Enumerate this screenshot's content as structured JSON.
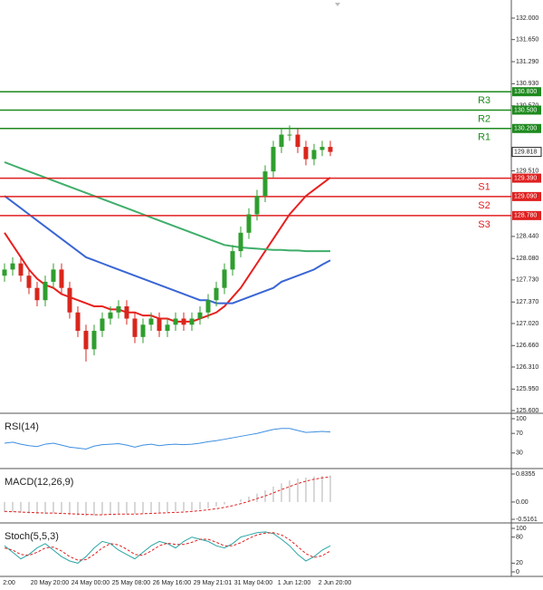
{
  "chart_data": {
    "type": "candlestick",
    "x_labels": [
      "2:00",
      "20 May 20:00",
      "24 May 00:00",
      "25 May 08:00",
      "26 May 16:00",
      "29 May 21:01",
      "31 May 04:00",
      "1 Jun 12:00",
      "2 Jun 20:00"
    ],
    "up_color": "#2e9e2e",
    "down_color": "#d9261c",
    "candles": {
      "open": [
        127.8,
        127.9,
        128.0,
        127.8,
        127.6,
        127.4,
        127.7,
        127.9,
        127.6,
        127.2,
        126.9,
        126.6,
        126.9,
        127.1,
        127.2,
        127.3,
        127.1,
        126.8,
        127.0,
        127.1,
        126.9,
        127.0,
        127.1,
        127.0,
        127.1,
        127.2,
        127.4,
        127.6,
        127.9,
        128.2,
        128.5,
        128.8,
        129.1,
        129.5,
        129.9,
        130.1,
        130.1,
        129.9,
        129.7,
        129.85,
        129.9
      ],
      "high": [
        128.0,
        128.1,
        128.1,
        127.9,
        127.7,
        127.8,
        128.0,
        128.0,
        127.7,
        127.3,
        127.0,
        127.0,
        127.2,
        127.3,
        127.4,
        127.4,
        127.2,
        127.1,
        127.2,
        127.2,
        127.1,
        127.2,
        127.2,
        127.2,
        127.3,
        127.5,
        127.7,
        128.0,
        128.3,
        128.6,
        128.9,
        129.2,
        129.6,
        130.0,
        130.2,
        130.25,
        130.2,
        130.0,
        129.95,
        130.0,
        130.0
      ],
      "low": [
        127.7,
        127.8,
        127.7,
        127.5,
        127.3,
        127.3,
        127.6,
        127.5,
        127.1,
        126.8,
        126.4,
        126.5,
        126.8,
        127.0,
        127.1,
        127.0,
        126.7,
        126.7,
        126.9,
        126.8,
        126.8,
        126.9,
        126.9,
        126.9,
        127.0,
        127.1,
        127.3,
        127.5,
        127.8,
        128.1,
        128.4,
        128.7,
        129.0,
        129.4,
        129.8,
        130.0,
        129.8,
        129.6,
        129.6,
        129.75,
        129.75
      ],
      "close": [
        127.9,
        128.0,
        127.8,
        127.6,
        127.4,
        127.7,
        127.9,
        127.6,
        127.2,
        126.9,
        126.6,
        126.9,
        127.1,
        127.2,
        127.3,
        127.1,
        126.8,
        127.0,
        127.1,
        126.9,
        127.0,
        127.1,
        127.0,
        127.1,
        127.2,
        127.4,
        127.6,
        127.9,
        128.2,
        128.5,
        128.8,
        129.1,
        129.5,
        129.9,
        130.1,
        130.1,
        129.9,
        129.7,
        129.85,
        129.9,
        129.818
      ]
    },
    "ma": [
      {
        "color": "#e8201e",
        "values": [
          128.5,
          128.3,
          128.1,
          127.9,
          127.75,
          127.65,
          127.6,
          127.5,
          127.45,
          127.4,
          127.35,
          127.3,
          127.3,
          127.25,
          127.25,
          127.2,
          127.2,
          127.15,
          127.15,
          127.1,
          127.1,
          127.05,
          127.05,
          127.05,
          127.1,
          127.15,
          127.2,
          127.3,
          127.45,
          127.6,
          127.8,
          128.0,
          128.2,
          128.4,
          128.6,
          128.8,
          128.95,
          129.1,
          129.2,
          129.3,
          129.4
        ]
      },
      {
        "color": "#3a66d4",
        "values": [
          129.1,
          129.0,
          128.9,
          128.8,
          128.7,
          128.6,
          128.5,
          128.4,
          128.3,
          128.2,
          128.1,
          128.05,
          128.0,
          127.95,
          127.9,
          127.85,
          127.8,
          127.75,
          127.7,
          127.65,
          127.6,
          127.55,
          127.5,
          127.45,
          127.4,
          127.4,
          127.35,
          127.35,
          127.35,
          127.4,
          127.45,
          127.5,
          127.55,
          127.6,
          127.7,
          127.75,
          127.8,
          127.85,
          127.9,
          127.98,
          128.05
        ]
      },
      {
        "color": "#3fae6a",
        "values": [
          129.65,
          129.6,
          129.55,
          129.5,
          129.45,
          129.4,
          129.35,
          129.3,
          129.25,
          129.2,
          129.15,
          129.1,
          129.05,
          129.0,
          128.95,
          128.9,
          128.85,
          128.8,
          128.75,
          128.7,
          128.65,
          128.6,
          128.55,
          128.5,
          128.45,
          128.4,
          128.35,
          128.3,
          128.28,
          128.26,
          128.25,
          128.24,
          128.23,
          128.22,
          128.22,
          128.21,
          128.21,
          128.2,
          128.2,
          128.2,
          128.2
        ]
      }
    ],
    "ylim": [
      125.6,
      132.0
    ],
    "yticks": [
      {
        "value": 132.0,
        "label": "132.000"
      },
      {
        "value": 131.65,
        "label": "131.650"
      },
      {
        "value": 131.29,
        "label": "131.290"
      },
      {
        "value": 130.93,
        "label": "130.930"
      },
      {
        "value": 130.57,
        "label": "130.570"
      },
      {
        "value": 129.51,
        "label": "129.510"
      },
      {
        "value": 128.44,
        "label": "128.440"
      },
      {
        "value": 128.08,
        "label": "128.080"
      },
      {
        "value": 127.73,
        "label": "127.730"
      },
      {
        "value": 127.37,
        "label": "127.370"
      },
      {
        "value": 127.02,
        "label": "127.020"
      },
      {
        "value": 126.66,
        "label": "126.660"
      },
      {
        "value": 126.31,
        "label": "126.310"
      },
      {
        "value": 125.95,
        "label": "125.950"
      },
      {
        "value": 125.6,
        "label": "125.600"
      }
    ],
    "levels": [
      {
        "name": "R3",
        "color": "#1e8a1e",
        "value": {
          "value": 130.8,
          "label": "130.800"
        }
      },
      {
        "name": "R2",
        "color": "#1e8a1e",
        "value": {
          "value": 130.5,
          "label": "130.500"
        }
      },
      {
        "name": "R1",
        "color": "#1e8a1e",
        "value": {
          "value": 130.2,
          "label": "130.200"
        }
      },
      {
        "name": "S1",
        "color": "#e02020",
        "value": {
          "value": 129.39,
          "label": "129.390"
        }
      },
      {
        "name": "S2",
        "color": "#e02020",
        "value": {
          "value": 129.09,
          "label": "129.090"
        }
      },
      {
        "name": "S3",
        "color": "#e02020",
        "value": {
          "value": 128.78,
          "label": "128.780"
        }
      }
    ],
    "last_price": {
      "value": 129.818,
      "label": "129.818"
    },
    "indicators": [
      {
        "type": "rsi",
        "title": "RSI(14)",
        "ylim": [
          0,
          100
        ],
        "yticks": [
          100,
          70,
          30
        ],
        "series": [
          {
            "color": "#3d8fe0",
            "values": [
              50,
              52,
              48,
              45,
              43,
              48,
              50,
              46,
              42,
              40,
              38,
              44,
              47,
              48,
              49,
              46,
              42,
              46,
              48,
              45,
              47,
              48,
              47,
              48,
              50,
              53,
              55,
              58,
              61,
              64,
              67,
              70,
              74,
              78,
              80,
              80,
              76,
              72,
              73,
              74,
              73
            ]
          }
        ]
      },
      {
        "type": "macd",
        "title": "MACD(12,26,9)",
        "ylim": [
          -0.5161,
          0.8355
        ],
        "yticks": [
          0.8355,
          {
            "value": 0,
            "label": "0.00"
          },
          -0.5161
        ],
        "series": [
          {
            "color": "#b0b0b0",
            "values": [
              -0.3,
              -0.3,
              -0.32,
              -0.34,
              -0.36,
              -0.35,
              -0.33,
              -0.35,
              -0.38,
              -0.4,
              -0.42,
              -0.4,
              -0.38,
              -0.36,
              -0.34,
              -0.34,
              -0.36,
              -0.34,
              -0.32,
              -0.32,
              -0.3,
              -0.28,
              -0.27,
              -0.25,
              -0.22,
              -0.18,
              -0.13,
              -0.07,
              0.0,
              0.08,
              0.16,
              0.25,
              0.35,
              0.46,
              0.56,
              0.64,
              0.7,
              0.73,
              0.76,
              0.78,
              0.79
            ]
          },
          {
            "color": "#e02020",
            "values": [
              -0.28,
              -0.29,
              -0.3,
              -0.31,
              -0.32,
              -0.33,
              -0.33,
              -0.34,
              -0.35,
              -0.36,
              -0.37,
              -0.38,
              -0.38,
              -0.37,
              -0.36,
              -0.36,
              -0.36,
              -0.35,
              -0.34,
              -0.33,
              -0.32,
              -0.31,
              -0.3,
              -0.28,
              -0.26,
              -0.23,
              -0.2,
              -0.16,
              -0.11,
              -0.05,
              0.02,
              0.1,
              0.18,
              0.27,
              0.37,
              0.46,
              0.55,
              0.62,
              0.68,
              0.72,
              0.75
            ]
          }
        ]
      },
      {
        "type": "stoch",
        "title": "Stoch(5,5,3)",
        "ylim": [
          0,
          100
        ],
        "yticks": [
          100,
          80,
          20,
          0
        ],
        "series": [
          {
            "color": "#2aa6a6",
            "values": [
              60,
              45,
              30,
              40,
              55,
              65,
              50,
              35,
              25,
              20,
              35,
              55,
              70,
              65,
              50,
              40,
              30,
              45,
              60,
              70,
              65,
              55,
              70,
              80,
              75,
              70,
              60,
              55,
              65,
              80,
              85,
              90,
              92,
              88,
              75,
              60,
              40,
              25,
              35,
              50,
              60
            ]
          },
          {
            "color": "#e02020",
            "values": [
              55,
              50,
              40,
              38,
              45,
              55,
              57,
              48,
              35,
              27,
              28,
              40,
              55,
              65,
              62,
              52,
              40,
              38,
              48,
              60,
              66,
              63,
              63,
              68,
              75,
              75,
              68,
              60,
              60,
              67,
              77,
              85,
              89,
              90,
              85,
              74,
              58,
              42,
              33,
              37,
              48
            ]
          }
        ]
      }
    ]
  }
}
